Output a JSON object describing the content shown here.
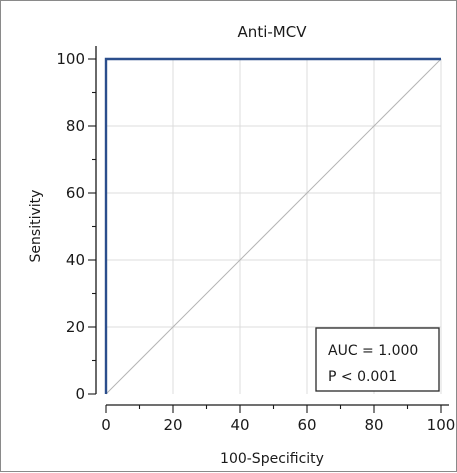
{
  "chart_data": {
    "type": "line",
    "title": "Anti-MCV",
    "xlabel": "100-Specificity",
    "ylabel": "Sensitivity",
    "xlim": [
      0,
      100
    ],
    "ylim": [
      0,
      100
    ],
    "x_ticks": [
      "0",
      "20",
      "40",
      "60",
      "80",
      "100"
    ],
    "y_ticks": [
      "0",
      "20",
      "40",
      "60",
      "80",
      "100"
    ],
    "grid": true,
    "series": [
      {
        "x": [
          0,
          0,
          100
        ],
        "y": [
          0,
          100,
          100
        ],
        "color": "#2b4e8c"
      },
      {
        "x": [
          0,
          100
        ],
        "y": [
          0,
          100
        ],
        "color": "#b5b5b5"
      }
    ],
    "annotation": {
      "line1": "AUC = 1.000",
      "line2": "P < 0.001"
    }
  }
}
